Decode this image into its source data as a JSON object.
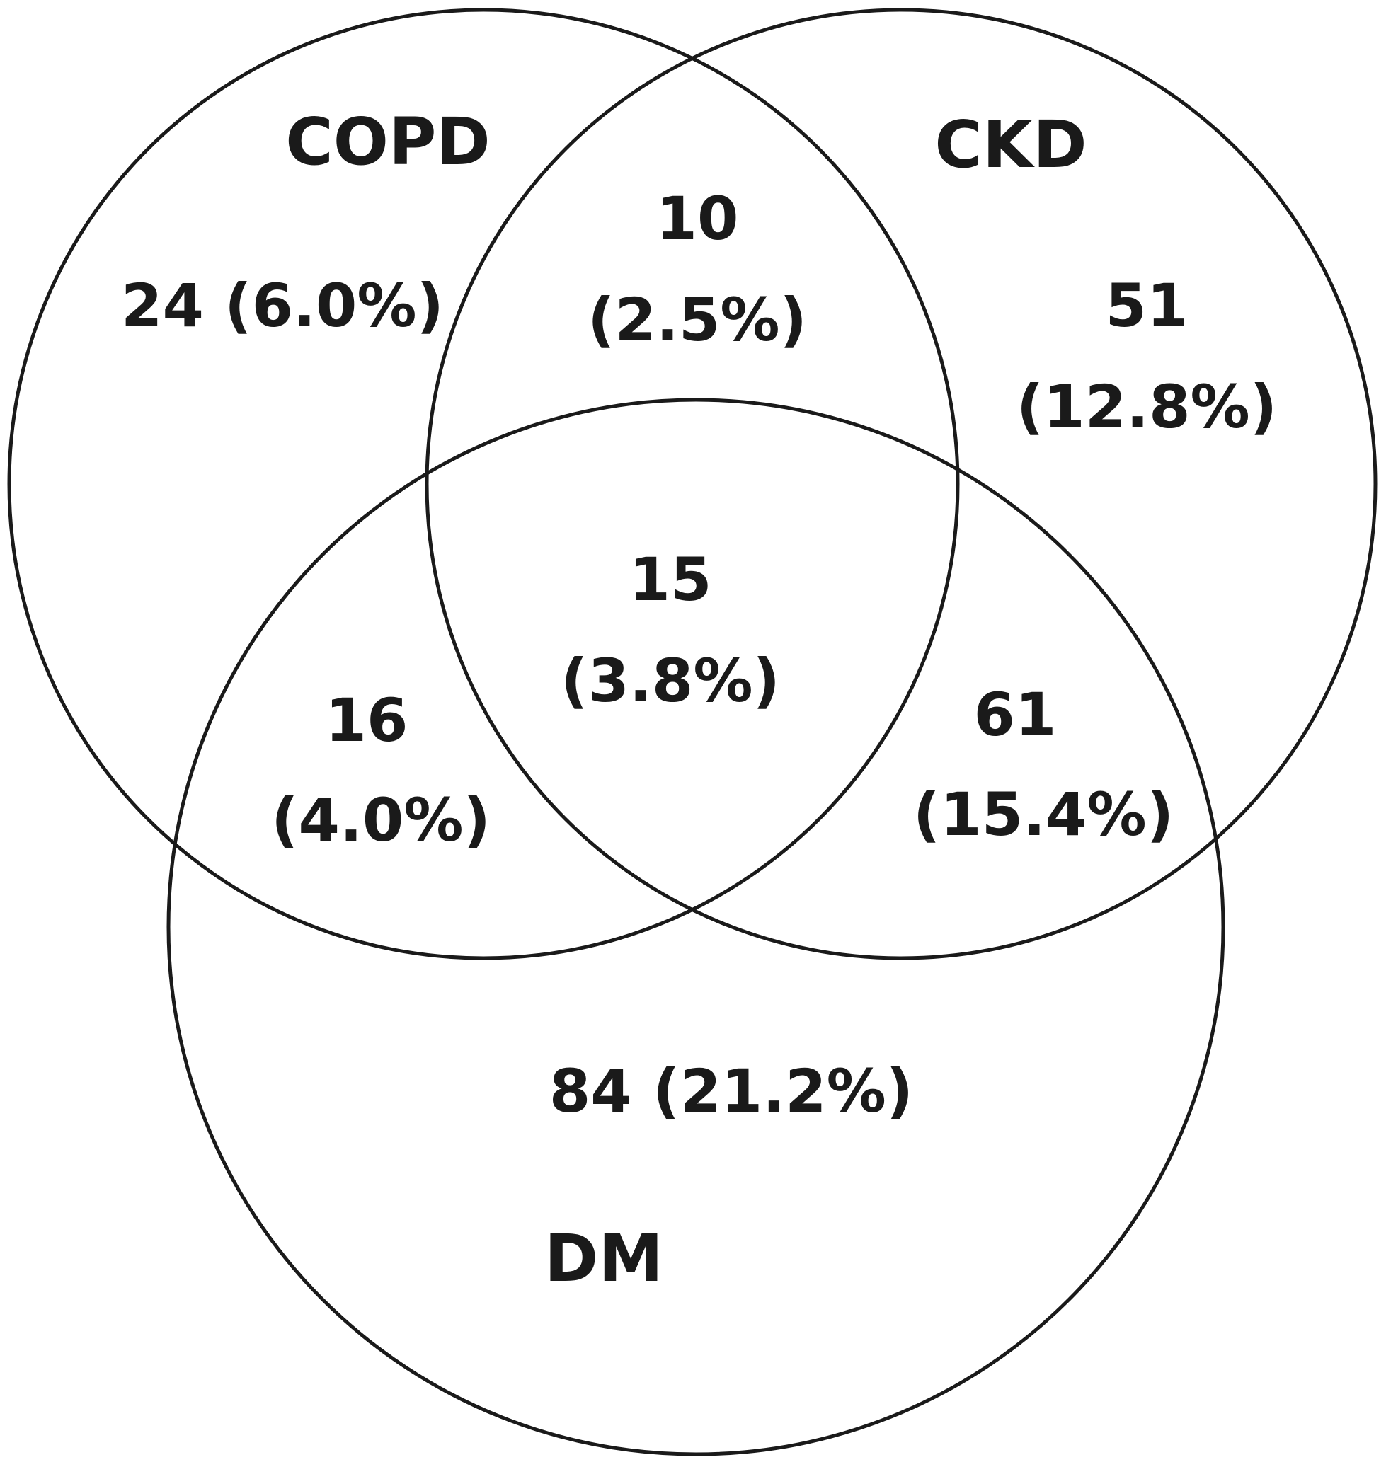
{
  "sets": {
    "copd": "COPD",
    "ckd": "CKD",
    "dm": "DM"
  },
  "regions": {
    "copd_only": {
      "line1": "24 (6.0%)"
    },
    "copd_ckd": {
      "line1": "10",
      "line2": "(2.5%)"
    },
    "ckd_only": {
      "line1": "51",
      "line2": "(12.8%)"
    },
    "all_three": {
      "line1": "15",
      "line2": "(3.8%)"
    },
    "copd_dm": {
      "line1": "16",
      "line2": "(4.0%)"
    },
    "ckd_dm": {
      "line1": "61",
      "line2": "(15.4%)"
    },
    "dm_only": {
      "line1": "84 (21.2%)"
    }
  },
  "colors": {
    "stroke": "#1a1a1a",
    "text": "#1a1a1a",
    "background": "#ffffff"
  }
}
